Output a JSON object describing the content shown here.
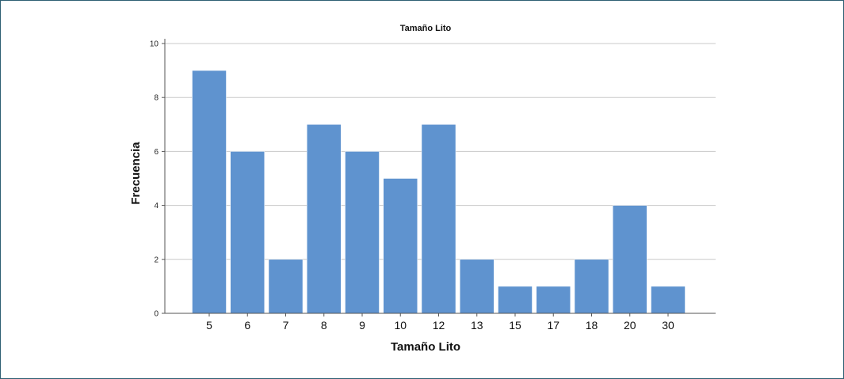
{
  "chart_data": {
    "type": "bar",
    "title": "Tamaño Lito",
    "xlabel": "Tamaño Lito",
    "ylabel": "Frecuencia",
    "categories": [
      "5",
      "6",
      "7",
      "8",
      "9",
      "10",
      "12",
      "13",
      "15",
      "17",
      "18",
      "20",
      "30"
    ],
    "values": [
      9,
      6,
      2,
      7,
      6,
      5,
      7,
      2,
      1,
      1,
      2,
      4,
      1
    ],
    "ylim": [
      0,
      10
    ],
    "yticks": [
      "0",
      "2",
      "4",
      "6",
      "8",
      "10"
    ],
    "grid": true,
    "bar_color": "#5f93cf",
    "grid_color": "#c8c8c8",
    "axis_color": "#555555"
  }
}
